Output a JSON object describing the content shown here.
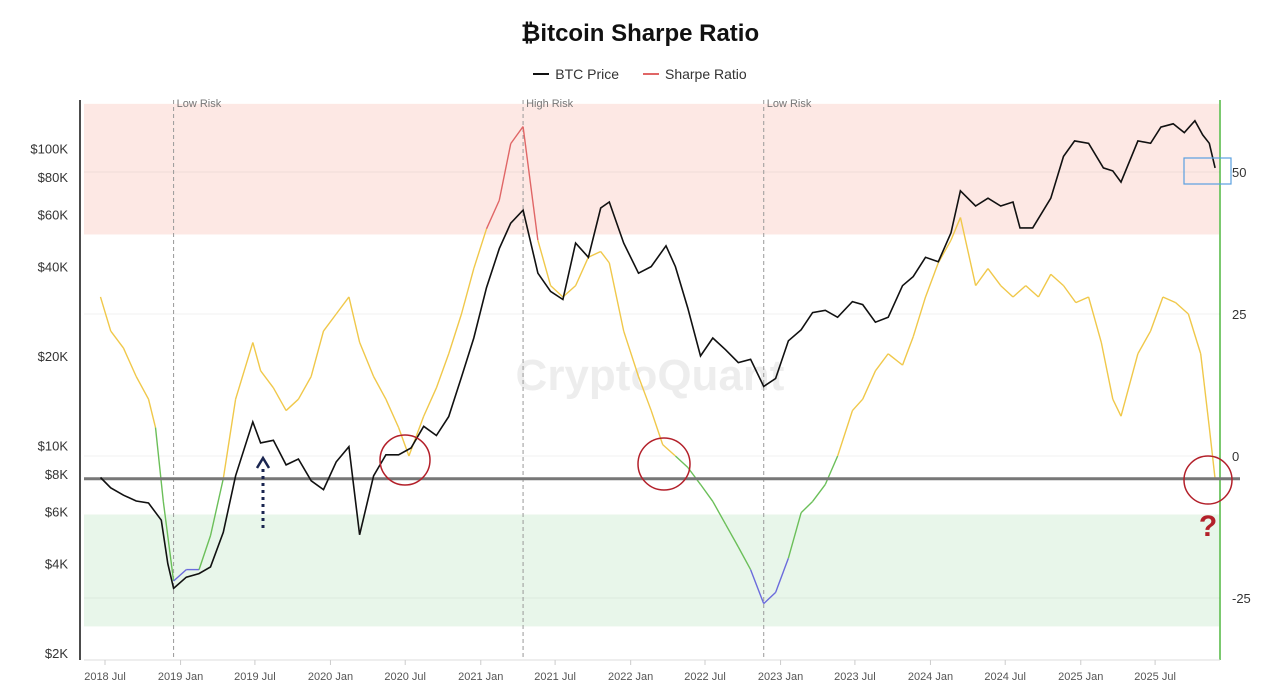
{
  "chart_data": {
    "type": "line",
    "title": "₿itcoin Sharpe Ratio",
    "legend": [
      {
        "name": "BTC Price",
        "color": "#111111"
      },
      {
        "name": "Sharpe Ratio",
        "color": "#e06666"
      }
    ],
    "legend_position": "top",
    "x_ticks": [
      "2018 Jul",
      "2019 Jan",
      "2019 Jul",
      "2020 Jan",
      "2020 Jul",
      "2021 Jan",
      "2021 Jul",
      "2022 Jan",
      "2022 Jul",
      "2023 Jan",
      "2023 Jul",
      "2024 Jan",
      "2024 Jul",
      "2025 Jan",
      "2025 Jul"
    ],
    "y_left": {
      "scale": "log",
      "range": [
        2000,
        160000
      ],
      "ticks": [
        "$2K",
        "$4K",
        "$6K",
        "$8K",
        "$10K",
        "$20K",
        "$40K",
        "$60K",
        "$80K",
        "$100K"
      ],
      "tick_values": [
        2000,
        4000,
        6000,
        8000,
        10000,
        20000,
        40000,
        60000,
        80000,
        100000
      ]
    },
    "y_right": {
      "range": [
        -35,
        62
      ],
      "ticks": [
        "50",
        "25",
        "0",
        "-25"
      ],
      "tick_values": [
        50,
        25,
        0,
        -25
      ]
    },
    "bands": [
      {
        "from": 39,
        "to": 62,
        "color": "#fde8e4"
      },
      {
        "from": -30,
        "to": -10.3,
        "color": "#e8f6ea"
      }
    ],
    "reference_line": -4,
    "annotations": [
      {
        "date": "2018-12-15",
        "label": "Low Risk"
      },
      {
        "date": "2021-04-14",
        "label": "High Risk"
      },
      {
        "date": "2022-11-21",
        "label": "Low Risk"
      }
    ],
    "watermark": "CryptoQuant",
    "question_mark": "?",
    "sharpe_colors": {
      "high": "#e06666",
      "mid": "#f0c84a",
      "low": "#6bbf59",
      "extreme_low": "#6b6bdc"
    },
    "series": [
      {
        "name": "BTC Price",
        "axis": "left",
        "points": [
          [
            "2018-06-20",
            7800
          ],
          [
            "2018-07-15",
            7200
          ],
          [
            "2018-08-15",
            6800
          ],
          [
            "2018-09-15",
            6500
          ],
          [
            "2018-10-15",
            6400
          ],
          [
            "2018-11-15",
            5600
          ],
          [
            "2018-12-01",
            4000
          ],
          [
            "2018-12-15",
            3300
          ],
          [
            "2019-01-15",
            3600
          ],
          [
            "2019-02-15",
            3700
          ],
          [
            "2019-03-15",
            3900
          ],
          [
            "2019-04-15",
            5100
          ],
          [
            "2019-05-15",
            7900
          ],
          [
            "2019-06-26",
            12000
          ],
          [
            "2019-07-15",
            10200
          ],
          [
            "2019-08-15",
            10400
          ],
          [
            "2019-09-15",
            8600
          ],
          [
            "2019-10-15",
            9000
          ],
          [
            "2019-11-15",
            7600
          ],
          [
            "2019-12-15",
            7100
          ],
          [
            "2020-01-15",
            8800
          ],
          [
            "2020-02-15",
            9900
          ],
          [
            "2020-03-12",
            5000
          ],
          [
            "2020-04-15",
            7900
          ],
          [
            "2020-05-15",
            9300
          ],
          [
            "2020-06-15",
            9300
          ],
          [
            "2020-07-15",
            9800
          ],
          [
            "2020-08-15",
            11600
          ],
          [
            "2020-09-15",
            10800
          ],
          [
            "2020-10-15",
            12500
          ],
          [
            "2020-11-15",
            17000
          ],
          [
            "2020-12-15",
            23000
          ],
          [
            "2021-01-15",
            34000
          ],
          [
            "2021-02-15",
            46000
          ],
          [
            "2021-03-15",
            56000
          ],
          [
            "2021-04-14",
            62000
          ],
          [
            "2021-05-20",
            38000
          ],
          [
            "2021-06-20",
            33000
          ],
          [
            "2021-07-20",
            31000
          ],
          [
            "2021-08-20",
            48000
          ],
          [
            "2021-09-20",
            43000
          ],
          [
            "2021-10-20",
            63000
          ],
          [
            "2021-11-10",
            66000
          ],
          [
            "2021-12-15",
            48000
          ],
          [
            "2022-01-20",
            38000
          ],
          [
            "2022-02-20",
            40000
          ],
          [
            "2022-03-28",
            47000
          ],
          [
            "2022-04-20",
            40000
          ],
          [
            "2022-05-20",
            29000
          ],
          [
            "2022-06-20",
            20000
          ],
          [
            "2022-07-20",
            23000
          ],
          [
            "2022-08-20",
            21000
          ],
          [
            "2022-09-20",
            19000
          ],
          [
            "2022-10-20",
            19500
          ],
          [
            "2022-11-21",
            15800
          ],
          [
            "2022-12-20",
            16800
          ],
          [
            "2023-01-20",
            22500
          ],
          [
            "2023-02-20",
            24500
          ],
          [
            "2023-03-20",
            28000
          ],
          [
            "2023-04-20",
            28500
          ],
          [
            "2023-05-20",
            27000
          ],
          [
            "2023-06-25",
            30500
          ],
          [
            "2023-07-20",
            29800
          ],
          [
            "2023-08-20",
            26000
          ],
          [
            "2023-09-20",
            27000
          ],
          [
            "2023-10-25",
            34500
          ],
          [
            "2023-11-20",
            37000
          ],
          [
            "2023-12-20",
            43000
          ],
          [
            "2024-01-20",
            41500
          ],
          [
            "2024-02-20",
            52000
          ],
          [
            "2024-03-14",
            72000
          ],
          [
            "2024-04-20",
            64000
          ],
          [
            "2024-05-20",
            68000
          ],
          [
            "2024-06-20",
            64000
          ],
          [
            "2024-07-20",
            66000
          ],
          [
            "2024-08-06",
            54000
          ],
          [
            "2024-09-06",
            54000
          ],
          [
            "2024-10-20",
            68000
          ],
          [
            "2024-11-20",
            94000
          ],
          [
            "2024-12-17",
            106000
          ],
          [
            "2025-01-20",
            104000
          ],
          [
            "2025-02-25",
            86000
          ],
          [
            "2025-03-20",
            84000
          ],
          [
            "2025-04-09",
            77000
          ],
          [
            "2025-05-20",
            106000
          ],
          [
            "2025-06-20",
            104000
          ],
          [
            "2025-07-15",
            118000
          ],
          [
            "2025-08-14",
            121000
          ],
          [
            "2025-09-10",
            113000
          ],
          [
            "2025-10-06",
            124000
          ],
          [
            "2025-10-25",
            111000
          ],
          [
            "2025-11-10",
            104000
          ],
          [
            "2025-11-24",
            86000
          ]
        ]
      },
      {
        "name": "Sharpe Ratio",
        "axis": "right",
        "points": [
          [
            "2018-06-20",
            28
          ],
          [
            "2018-07-15",
            22
          ],
          [
            "2018-08-15",
            19
          ],
          [
            "2018-09-15",
            14
          ],
          [
            "2018-10-15",
            10
          ],
          [
            "2018-11-01",
            5
          ],
          [
            "2018-11-20",
            -8
          ],
          [
            "2018-12-15",
            -22
          ],
          [
            "2019-01-15",
            -20
          ],
          [
            "2019-02-15",
            -20
          ],
          [
            "2019-03-15",
            -14
          ],
          [
            "2019-04-15",
            -4
          ],
          [
            "2019-05-15",
            10
          ],
          [
            "2019-06-26",
            20
          ],
          [
            "2019-07-15",
            15
          ],
          [
            "2019-08-15",
            12
          ],
          [
            "2019-09-15",
            8
          ],
          [
            "2019-10-15",
            10
          ],
          [
            "2019-11-15",
            14
          ],
          [
            "2019-12-15",
            22
          ],
          [
            "2020-01-15",
            25
          ],
          [
            "2020-02-15",
            28
          ],
          [
            "2020-03-12",
            20
          ],
          [
            "2020-04-15",
            14
          ],
          [
            "2020-05-15",
            10
          ],
          [
            "2020-06-15",
            5
          ],
          [
            "2020-07-10",
            0
          ],
          [
            "2020-08-15",
            7
          ],
          [
            "2020-09-15",
            12
          ],
          [
            "2020-10-15",
            18
          ],
          [
            "2020-11-15",
            25
          ],
          [
            "2020-12-15",
            33
          ],
          [
            "2021-01-15",
            40
          ],
          [
            "2021-02-15",
            45
          ],
          [
            "2021-03-15",
            55
          ],
          [
            "2021-04-14",
            58
          ],
          [
            "2021-05-20",
            38
          ],
          [
            "2021-06-20",
            30
          ],
          [
            "2021-07-20",
            28
          ],
          [
            "2021-08-20",
            30
          ],
          [
            "2021-09-20",
            35
          ],
          [
            "2021-10-20",
            36
          ],
          [
            "2021-11-10",
            34
          ],
          [
            "2021-12-15",
            22
          ],
          [
            "2022-01-20",
            14
          ],
          [
            "2022-02-20",
            8
          ],
          [
            "2022-03-20",
            2
          ],
          [
            "2022-04-20",
            0
          ],
          [
            "2022-05-20",
            -2
          ],
          [
            "2022-06-20",
            -5
          ],
          [
            "2022-07-20",
            -8
          ],
          [
            "2022-08-20",
            -12
          ],
          [
            "2022-09-20",
            -16
          ],
          [
            "2022-10-20",
            -20
          ],
          [
            "2022-11-21",
            -26
          ],
          [
            "2022-12-20",
            -24
          ],
          [
            "2023-01-20",
            -18
          ],
          [
            "2023-02-20",
            -10
          ],
          [
            "2023-03-20",
            -8
          ],
          [
            "2023-04-20",
            -5
          ],
          [
            "2023-05-20",
            0
          ],
          [
            "2023-06-25",
            8
          ],
          [
            "2023-07-20",
            10
          ],
          [
            "2023-08-20",
            15
          ],
          [
            "2023-09-20",
            18
          ],
          [
            "2023-10-25",
            16
          ],
          [
            "2023-11-20",
            21
          ],
          [
            "2023-12-20",
            28
          ],
          [
            "2024-01-20",
            34
          ],
          [
            "2024-02-20",
            38
          ],
          [
            "2024-03-14",
            42
          ],
          [
            "2024-04-20",
            30
          ],
          [
            "2024-05-20",
            33
          ],
          [
            "2024-06-20",
            30
          ],
          [
            "2024-07-20",
            28
          ],
          [
            "2024-08-20",
            30
          ],
          [
            "2024-09-20",
            28
          ],
          [
            "2024-10-20",
            32
          ],
          [
            "2024-11-20",
            30
          ],
          [
            "2024-12-20",
            27
          ],
          [
            "2025-01-20",
            28
          ],
          [
            "2025-02-20",
            20
          ],
          [
            "2025-03-20",
            10
          ],
          [
            "2025-04-09",
            7
          ],
          [
            "2025-05-20",
            18
          ],
          [
            "2025-06-20",
            22
          ],
          [
            "2025-07-20",
            28
          ],
          [
            "2025-08-20",
            27
          ],
          [
            "2025-09-20",
            25
          ],
          [
            "2025-10-20",
            18
          ],
          [
            "2025-11-10",
            5
          ],
          [
            "2025-11-24",
            -4
          ]
        ]
      }
    ]
  }
}
